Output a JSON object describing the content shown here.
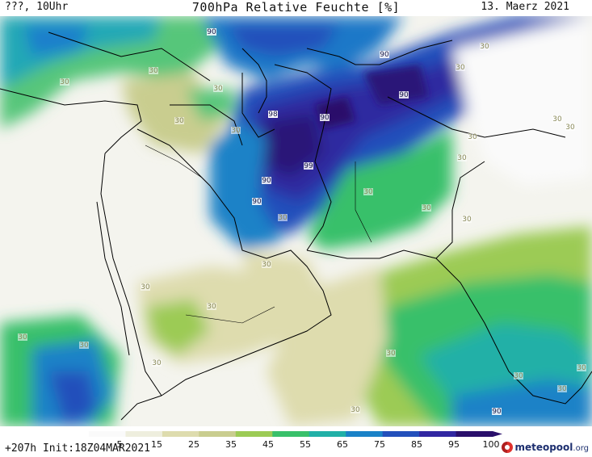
{
  "header": {
    "left": "???, 10Uhr",
    "title": "700hPa Relative Feuchte [%]",
    "right": "13. Maerz 2021"
  },
  "footer": {
    "info": "+207h Init:18Z04MAR2021",
    "brand": "meteopool",
    "brand_tld": ".org"
  },
  "legend": {
    "ticks": [
      "5",
      "15",
      "25",
      "35",
      "45",
      "55",
      "65",
      "75",
      "85",
      "95",
      "100"
    ],
    "colors": [
      "#fafafa",
      "#eeeede",
      "#dedcae",
      "#c9cd8f",
      "#9ccb55",
      "#39c06a",
      "#21b0a7",
      "#1a82c7",
      "#2350bb",
      "#3127a1",
      "#2a0f6b"
    ]
  },
  "contour_labels": [
    {
      "text": "90"
    },
    {
      "text": "90"
    },
    {
      "text": "90"
    },
    {
      "text": "90"
    },
    {
      "text": "90"
    },
    {
      "text": "90"
    },
    {
      "text": "90"
    },
    {
      "text": "99"
    },
    {
      "text": "98"
    },
    {
      "text": "90"
    },
    {
      "text": "30"
    },
    {
      "text": "30"
    },
    {
      "text": "30"
    },
    {
      "text": "30"
    },
    {
      "text": "30"
    },
    {
      "text": "30"
    },
    {
      "text": "30"
    },
    {
      "text": "30"
    },
    {
      "text": "30"
    },
    {
      "text": "30"
    },
    {
      "text": "30"
    },
    {
      "text": "30"
    },
    {
      "text": "30"
    },
    {
      "text": "30"
    },
    {
      "text": "30"
    },
    {
      "text": "30"
    },
    {
      "text": "30"
    },
    {
      "text": "30"
    },
    {
      "text": "30"
    },
    {
      "text": "30"
    },
    {
      "text": "30"
    },
    {
      "text": "30"
    },
    {
      "text": "30"
    },
    {
      "text": "30"
    },
    {
      "text": "30"
    },
    {
      "text": "30"
    }
  ]
}
